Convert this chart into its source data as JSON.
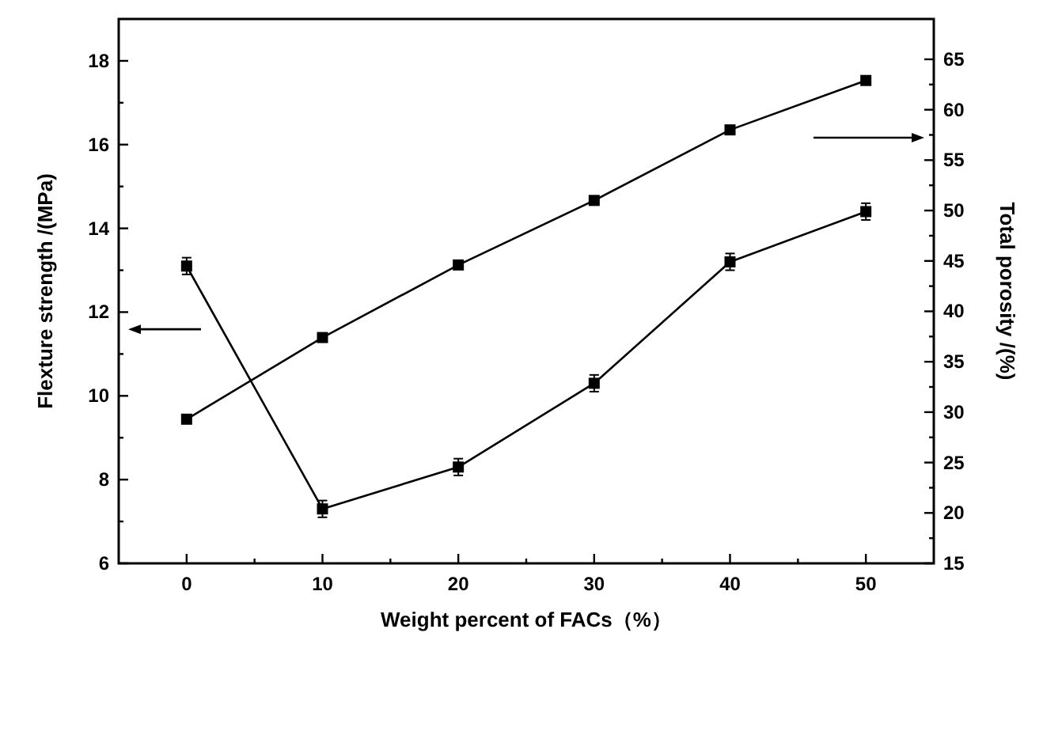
{
  "chart_data": {
    "type": "line",
    "xlabel": "Weight percent of FACs（%）",
    "ylabel": "Flexture strength /(MPa)",
    "y2label": "Total porosity /(%)",
    "x": [
      0,
      10,
      20,
      30,
      40,
      50
    ],
    "series": [
      {
        "color": "#000000",
        "values": [
          13.1,
          7.3,
          8.3,
          10.3,
          13.2,
          14.4
        ],
        "errors": [
          0.2,
          0.2,
          0.2,
          0.2,
          0.2,
          0.2
        ]
      },
      {
        "color": "#000000",
        "axis": "y2",
        "values": [
          29.3,
          37.4,
          44.6,
          51,
          58,
          62.9
        ]
      }
    ],
    "xlim": [
      -5,
      55
    ],
    "xticks": [
      0,
      {
        "value": 5,
        "label": null
      },
      10,
      {
        "value": 15,
        "label": null
      },
      20,
      {
        "value": 25,
        "label": null
      },
      30,
      {
        "value": 35,
        "label": null
      },
      40,
      {
        "value": 45,
        "label": null
      },
      50
    ],
    "ylim": [
      6,
      19
    ],
    "yticks": [
      6,
      {
        "value": 7,
        "label": null
      },
      8,
      {
        "value": 9,
        "label": null
      },
      10,
      {
        "value": 11,
        "label": null
      },
      12,
      {
        "value": 13,
        "label": null
      },
      14,
      {
        "value": 15,
        "label": null
      },
      16,
      {
        "value": 17,
        "label": null
      },
      18
    ],
    "y2lim": [
      15,
      69
    ],
    "y2ticks": [
      15,
      {
        "value": 17.5,
        "label": null
      },
      20,
      {
        "value": 22.5,
        "label": null
      },
      25,
      {
        "value": 27.5,
        "label": null
      },
      30,
      {
        "value": 32.5,
        "label": null
      },
      35,
      {
        "value": 37.5,
        "label": null
      },
      40,
      {
        "value": 42.5,
        "label": null
      },
      45,
      {
        "value": 47.5,
        "label": null
      },
      50,
      {
        "value": 52.5,
        "label": null
      },
      55,
      {
        "value": 57.5,
        "label": null
      },
      60,
      {
        "value": 62.5,
        "label": null
      },
      65
    ],
    "marker": "square",
    "line_style": "solid",
    "grid": false
  }
}
